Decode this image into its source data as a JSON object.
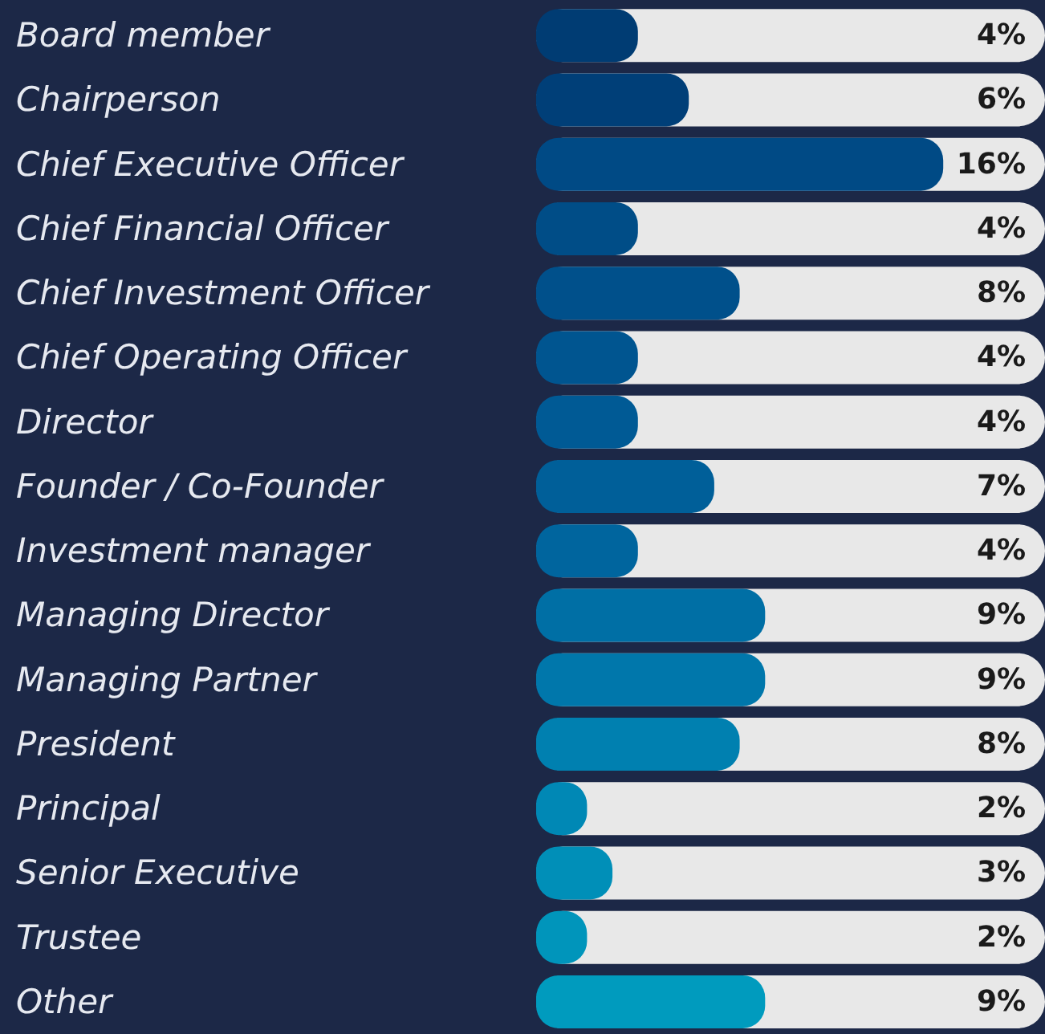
{
  "chart_data": {
    "type": "bar",
    "orientation": "horizontal",
    "categories": [
      "Board member",
      "Chairperson",
      "Chief Executive Officer",
      "Chief Financial Officer",
      "Chief Investment Officer",
      "Chief Operating Officer",
      "Director",
      "Founder / Co-Founder",
      "Investment manager",
      "Managing Director",
      "Managing Partner",
      "President",
      "Principal",
      "Senior Executive",
      "Trustee",
      "Other"
    ],
    "values": [
      4,
      6,
      16,
      4,
      8,
      4,
      4,
      7,
      4,
      9,
      9,
      8,
      2,
      3,
      2,
      9
    ],
    "value_labels": [
      "4%",
      "6%",
      "16%",
      "4%",
      "8%",
      "4%",
      "4%",
      "7%",
      "4%",
      "9%",
      "9%",
      "8%",
      "2%",
      "3%",
      "2%",
      "9%"
    ],
    "colors": [
      "#003c73",
      "#003f78",
      "#004a85",
      "#004d87",
      "#00508b",
      "#005590",
      "#005a95",
      "#005f99",
      "#00659e",
      "#006fa5",
      "#0077ab",
      "#0080b0",
      "#0088b5",
      "#008fb8",
      "#0095bb",
      "#009bbe"
    ],
    "xlim": [
      0,
      20
    ],
    "tick_labels": "y"
  }
}
